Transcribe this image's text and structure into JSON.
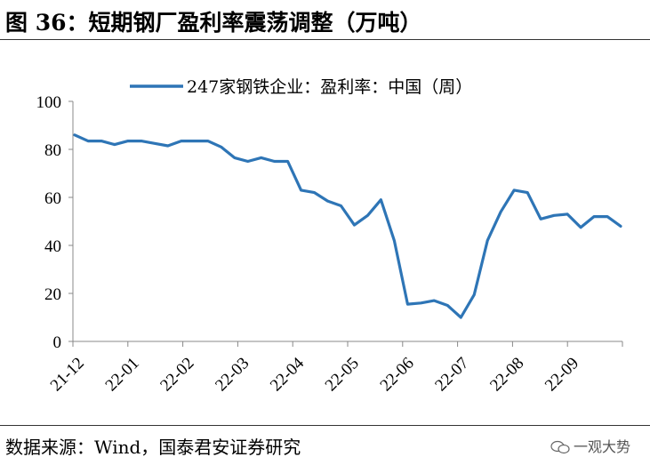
{
  "figure": {
    "title": "图 36：短期钢厂盈利率震荡调整（万吨）",
    "source": "数据来源：Wind，国泰君安证券研究",
    "watermark": "一观大势"
  },
  "chart_data": {
    "type": "line",
    "legend": "247家钢铁企业：盈利率：中国（周）",
    "legend_position": "top-center",
    "ylim": [
      0,
      100
    ],
    "yticks": [
      0,
      20,
      40,
      60,
      80,
      100
    ],
    "xticks": [
      "21-12",
      "22-01",
      "22-02",
      "22-03",
      "22-04",
      "22-05",
      "22-06",
      "22-07",
      "22-08",
      "22-09"
    ],
    "color": "#2e75b6",
    "grid": false,
    "series": [
      {
        "name": "247家钢铁企业：盈利率：中国（周）",
        "values": [
          86,
          83.5,
          83.5,
          82,
          83.5,
          83.5,
          82.5,
          81.5,
          83.5,
          83.5,
          83.5,
          81,
          76.5,
          75,
          76.5,
          75,
          75,
          63,
          62,
          58.5,
          56.5,
          48.5,
          52.5,
          59,
          42,
          15.5,
          16,
          17,
          15,
          10,
          19.5,
          42,
          54,
          63,
          62,
          51,
          52.5,
          53,
          47.5,
          52,
          52,
          48
        ]
      }
    ]
  }
}
